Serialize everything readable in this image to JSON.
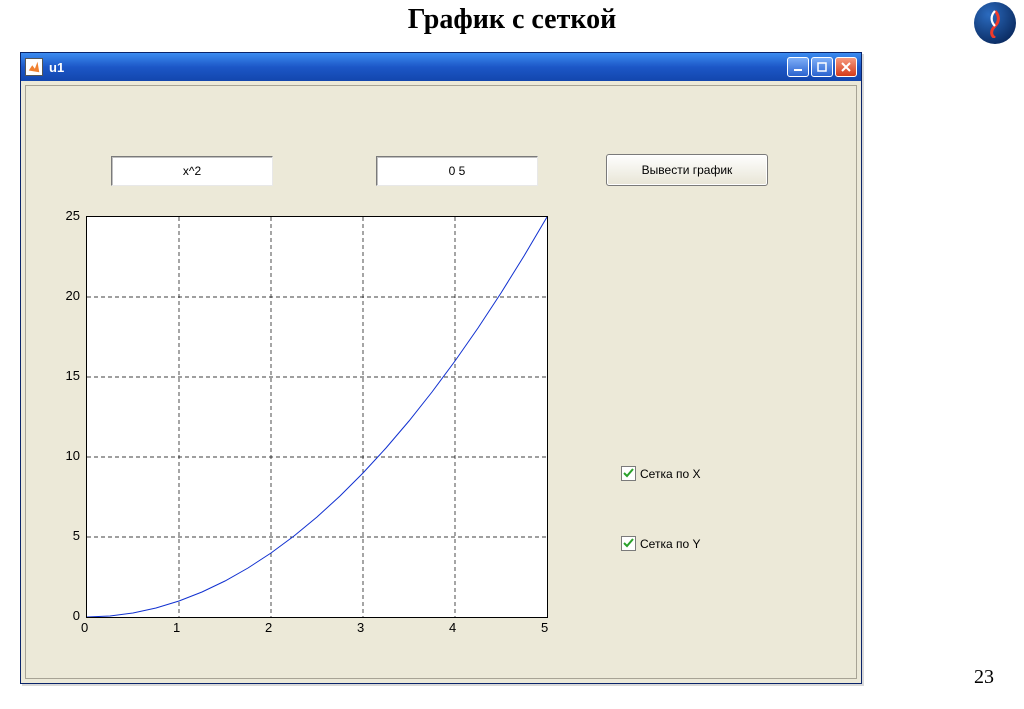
{
  "slide": {
    "title": "График с сеткой",
    "page_number": "23"
  },
  "window": {
    "title": "u1",
    "titlebar_gradient": [
      "#3c8cf0",
      "#1346ad"
    ],
    "close_color": "#d43b1a",
    "client_bg": "#ece9d8"
  },
  "inputs": {
    "function_value": "x^2",
    "range_value": "0 5",
    "plot_button_label": "Вывести график"
  },
  "checkboxes": {
    "grid_x": {
      "label": "Сетка по X",
      "checked": true,
      "check_color": "#2aa12a"
    },
    "grid_y": {
      "label": "Сетка по Y",
      "checked": true,
      "check_color": "#2aa12a"
    }
  },
  "chart": {
    "type": "line",
    "background_color": "#ffffff",
    "grid_color": "#000000",
    "grid_dash": "4 3",
    "line_color": "#1030d0",
    "line_width": 1,
    "xlim": [
      0,
      5
    ],
    "ylim": [
      0,
      25
    ],
    "xticks": [
      0,
      1,
      2,
      3,
      4,
      5
    ],
    "yticks": [
      0,
      5,
      10,
      15,
      20,
      25
    ],
    "tick_fontsize": 13,
    "x_values": [
      0,
      0.25,
      0.5,
      0.75,
      1,
      1.25,
      1.5,
      1.75,
      2,
      2.25,
      2.5,
      2.75,
      3,
      3.25,
      3.5,
      3.75,
      4,
      4.25,
      4.5,
      4.75,
      5
    ],
    "y_values": [
      0,
      0.0625,
      0.25,
      0.5625,
      1,
      1.5625,
      2.25,
      3.0625,
      4,
      5.0625,
      6.25,
      7.5625,
      9,
      10.5625,
      12.25,
      14.0625,
      16,
      18.0625,
      20.25,
      22.5625,
      25
    ]
  }
}
